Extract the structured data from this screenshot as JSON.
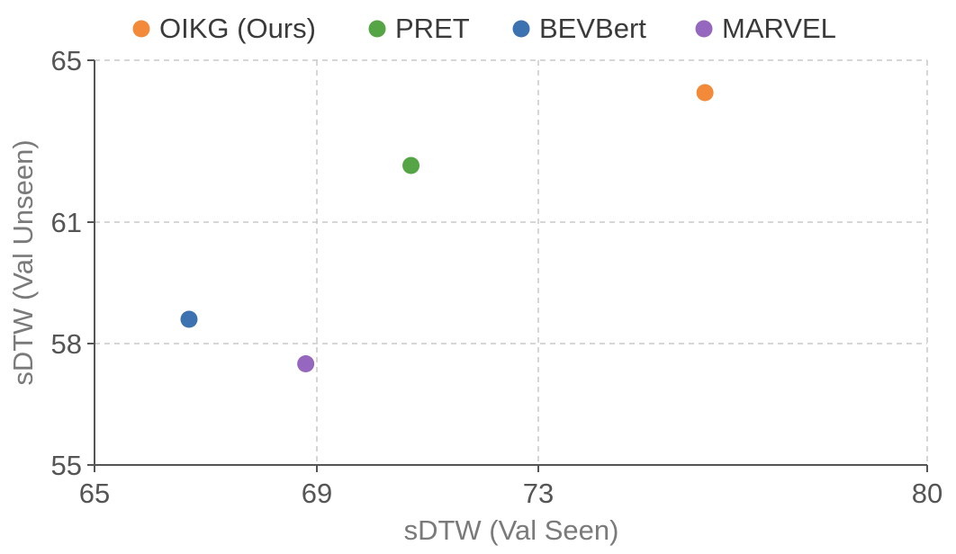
{
  "chart_data": {
    "type": "scatter",
    "title": "",
    "xlabel": "sDTW (Val Seen)",
    "ylabel": "sDTW (Val Unseen)",
    "xlim": [
      65,
      80
    ],
    "ylim": [
      55,
      65
    ],
    "x_ticks": [
      65,
      69,
      73,
      80
    ],
    "y_ticks": [
      55,
      58,
      61,
      65
    ],
    "grid": true,
    "legend_position": "top",
    "series": [
      {
        "name": "OIKG (Ours)",
        "color": "#f28a3a",
        "points": [
          {
            "x": 76.0,
            "y": 64.2
          }
        ]
      },
      {
        "name": "PRET",
        "color": "#55a546",
        "points": [
          {
            "x": 70.7,
            "y": 62.4
          }
        ]
      },
      {
        "name": "BEVBert",
        "color": "#3d72b1",
        "points": [
          {
            "x": 66.7,
            "y": 58.6
          }
        ]
      },
      {
        "name": "MARVEL",
        "color": "#9667be",
        "points": [
          {
            "x": 68.8,
            "y": 57.5
          }
        ]
      }
    ]
  }
}
